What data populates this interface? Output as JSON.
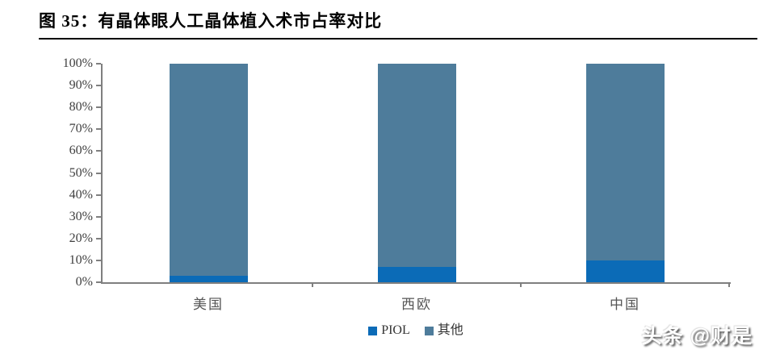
{
  "figure": {
    "title": "图 35：有晶体眼人工晶体植入术市占率对比"
  },
  "chart_data": {
    "type": "bar",
    "stacked": true,
    "orientation": "vertical",
    "title": "有晶体眼人工晶体植入术市占率对比",
    "categories": [
      "美国",
      "西欧",
      "中国"
    ],
    "series": [
      {
        "name": "PIOL",
        "color": "#0B6BB7",
        "values": [
          3,
          7,
          10
        ]
      },
      {
        "name": "其他",
        "color": "#4E7C9B",
        "values": [
          97,
          93,
          90
        ]
      }
    ],
    "xlabel": "",
    "ylabel": "",
    "ylim": [
      0,
      100
    ],
    "ytick_step": 10,
    "ytick_labels": [
      "0%",
      "10%",
      "20%",
      "30%",
      "40%",
      "50%",
      "60%",
      "70%",
      "80%",
      "90%",
      "100%"
    ],
    "unit": "percent",
    "grid": false,
    "legend_position": "bottom"
  },
  "watermark": {
    "text": "头条 @财是"
  },
  "colors": {
    "axis": "#7f7f7f",
    "tick_text": "#404040",
    "category_text": "#555555",
    "title_text": "#000000",
    "piol_blue": "#0B6BB7",
    "other_steel_blue": "#4E7C9B"
  }
}
